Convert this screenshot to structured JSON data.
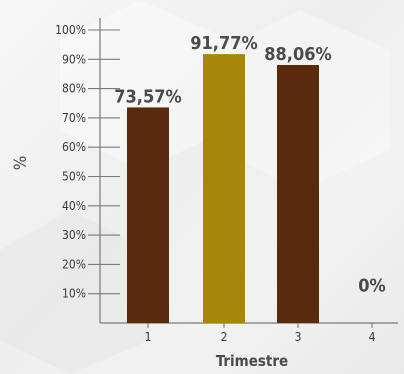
{
  "chart_data": {
    "type": "bar",
    "categories": [
      "1",
      "2",
      "3",
      "4"
    ],
    "values": [
      73.57,
      91.77,
      88.06,
      0
    ],
    "value_labels": [
      "73,57%",
      "91,77%",
      "88,06%",
      "0%"
    ],
    "bar_colors": [
      "#5a2a0d",
      "#a8860a",
      "#5a2a0d",
      "#5a2a0d"
    ],
    "y_ticks": [
      "10%",
      "20%",
      "30%",
      "40%",
      "50%",
      "60%",
      "70%",
      "80%",
      "90%",
      "100%"
    ],
    "y_tick_values": [
      10,
      20,
      30,
      40,
      50,
      60,
      70,
      80,
      90,
      100
    ],
    "xlabel": "Trimestre",
    "ylabel": "%",
    "ylim": [
      0,
      100
    ],
    "grid": false,
    "legend": "none"
  },
  "colors": {
    "axis": "#7a7a7a",
    "text": "#4a4a4a"
  }
}
